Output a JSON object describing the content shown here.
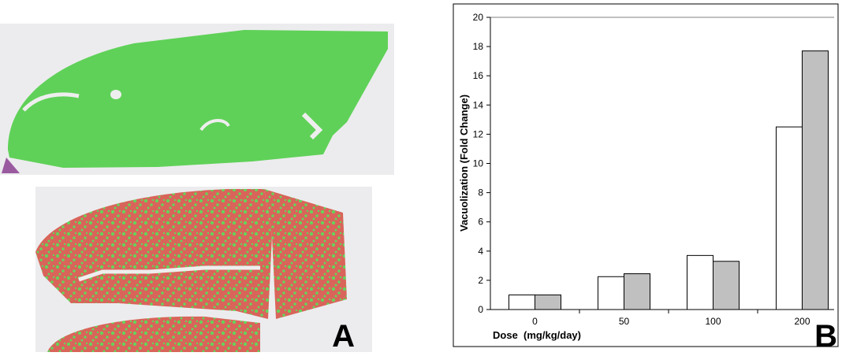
{
  "chart_data": {
    "type": "bar",
    "categories": [
      "0",
      "50",
      "100",
      "200"
    ],
    "series": [
      {
        "color": "#ffffff",
        "values": [
          1.0,
          2.25,
          3.7,
          12.5
        ]
      },
      {
        "color": "#c0c0c0",
        "values": [
          1.0,
          2.45,
          3.3,
          17.7
        ]
      }
    ],
    "ylim": [
      0,
      20
    ],
    "yticks": [
      0,
      2,
      4,
      6,
      8,
      10,
      12,
      14,
      16,
      18,
      20
    ],
    "x_label": "Dose  (mg/kg/day)",
    "y_label": "Vacuolization (Fold Change)",
    "grid": false
  },
  "panel_labels": [
    "A",
    "B"
  ]
}
